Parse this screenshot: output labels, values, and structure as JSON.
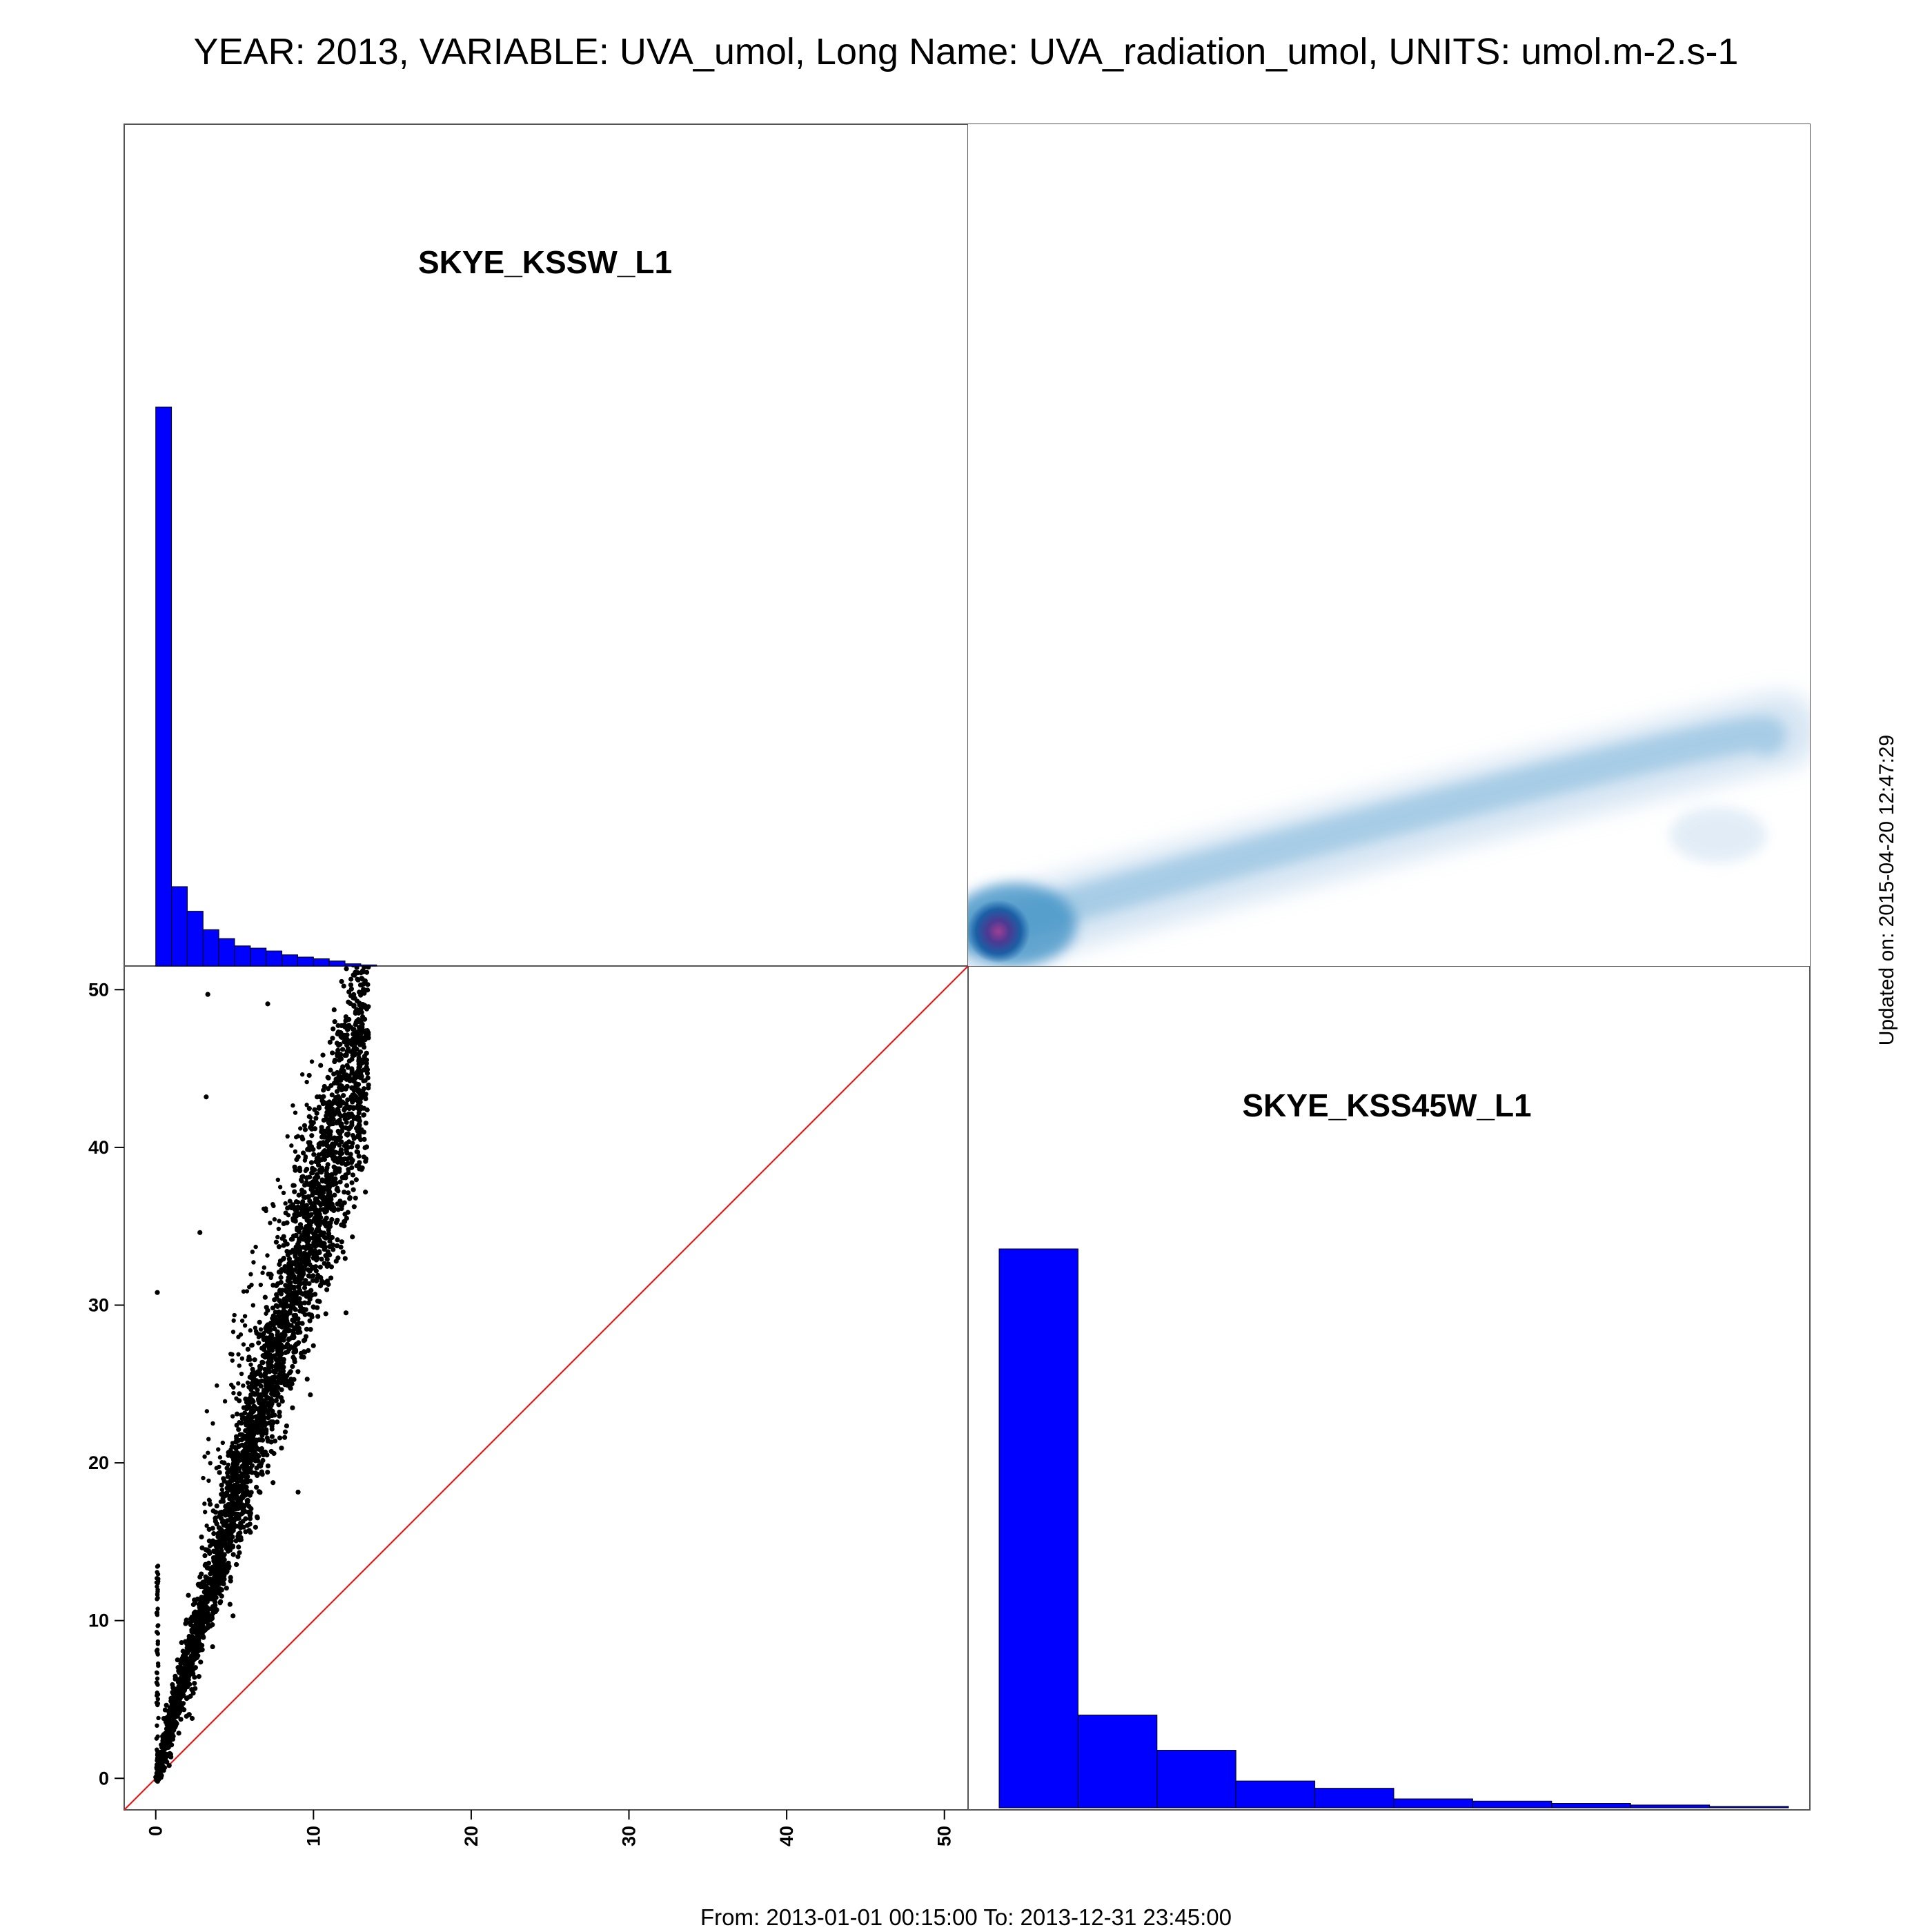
{
  "title": "YEAR: 2013, VARIABLE: UVA_umol, Long Name: UVA_radiation_umol, UNITS: umol.m-2.s-1",
  "footer": "From: 2013-01-01 00:15:00 To: 2013-12-31 23:45:00",
  "side_note": "Updated on: 2015-04-20 12:47:29",
  "colors": {
    "histogram_fill": "#0000ff",
    "scatter_points": "#000000",
    "identity_line": "#ff0000",
    "density_low": "#c6dbef",
    "density_mid": "#3a8fc4",
    "density_peak": "#8b3a8f"
  },
  "chart_data": [
    {
      "type": "bar",
      "panel": "top-left",
      "label": "SKYE_KSSW_L1",
      "bin_width": 1,
      "bin_starts": [
        0,
        1,
        2,
        3,
        4,
        5,
        6,
        7,
        8,
        9,
        10,
        11,
        12,
        13
      ],
      "values": [
        1.0,
        0.142,
        0.098,
        0.065,
        0.049,
        0.036,
        0.032,
        0.027,
        0.02,
        0.016,
        0.013,
        0.009,
        0.004,
        0.002
      ],
      "value_scale": "relative frequency"
    },
    {
      "type": "heatmap",
      "panel": "top-right",
      "description_kind": "smoothed density of SKYE_KSS45W_L1 vs SKYE_KSSW_L1",
      "peak": [
        0.5,
        0.5
      ]
    },
    {
      "type": "scatter",
      "panel": "bottom-left",
      "xlim": [
        -2,
        51.5
      ],
      "ylim": [
        -2,
        51.5
      ],
      "x_ticks": [
        0,
        10,
        20,
        30,
        40,
        50
      ],
      "y_ticks": [
        0,
        10,
        20,
        30,
        40,
        50
      ],
      "grid": false,
      "reference_line": {
        "slope": 1,
        "intercept": 0
      },
      "trend": {
        "slope": 3.55,
        "intercept": 0,
        "x_range": [
          0,
          13.5
        ]
      },
      "outliers": [
        [
          3.3,
          49.7
        ],
        [
          0.1,
          30.8
        ],
        [
          2.8,
          34.6
        ],
        [
          7.1,
          49.1
        ],
        [
          4.9,
          10.3
        ],
        [
          3.2,
          43.2
        ],
        [
          0.5,
          0.5
        ]
      ]
    },
    {
      "type": "bar",
      "panel": "bottom-right",
      "label": "SKYE_KSS45W_L1",
      "bin_width": 5,
      "bin_starts": [
        0,
        5,
        10,
        15,
        20,
        25,
        30,
        35,
        40,
        45
      ],
      "values": [
        1.0,
        0.166,
        0.103,
        0.048,
        0.035,
        0.016,
        0.012,
        0.008,
        0.005,
        0.001
      ],
      "value_scale": "relative frequency"
    }
  ]
}
